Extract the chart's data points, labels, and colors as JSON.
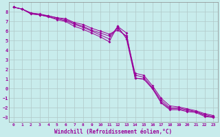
{
  "background_color": "#c8ecec",
  "grid_color": "#b0c8c8",
  "line_color": "#990099",
  "marker": "D",
  "marker_size": 2,
  "xlabel": "Windchill (Refroidissement éolien,°C)",
  "xlim": [
    -0.5,
    23.5
  ],
  "ylim": [
    -3.5,
    9.0
  ],
  "xticks": [
    0,
    1,
    2,
    3,
    4,
    5,
    6,
    7,
    8,
    9,
    10,
    11,
    12,
    13,
    14,
    15,
    16,
    17,
    18,
    19,
    20,
    21,
    22,
    23
  ],
  "yticks": [
    -3,
    -2,
    -1,
    0,
    1,
    2,
    3,
    4,
    5,
    6,
    7,
    8
  ],
  "lines": [
    [
      8.5,
      8.3,
      7.8,
      7.7,
      7.5,
      7.2,
      7.0,
      6.5,
      6.2,
      5.8,
      5.4,
      4.9,
      6.5,
      5.8,
      1.1,
      1.0,
      0.0,
      -1.5,
      -2.2,
      -2.2,
      -2.4,
      -2.5,
      -2.9,
      -3.0
    ],
    [
      8.5,
      8.3,
      7.8,
      7.7,
      7.5,
      7.3,
      7.1,
      6.7,
      6.4,
      6.0,
      5.6,
      5.2,
      6.5,
      5.2,
      1.1,
      1.0,
      0.0,
      -1.4,
      -2.1,
      -2.1,
      -2.3,
      -2.4,
      -2.8,
      -3.0
    ],
    [
      8.5,
      8.3,
      7.9,
      7.7,
      7.6,
      7.4,
      7.2,
      6.8,
      6.5,
      6.1,
      5.8,
      5.5,
      6.3,
      5.4,
      1.4,
      1.2,
      0.1,
      -1.2,
      -2.0,
      -2.0,
      -2.2,
      -2.4,
      -2.7,
      -2.9
    ],
    [
      8.5,
      8.3,
      7.9,
      7.8,
      7.6,
      7.4,
      7.3,
      6.9,
      6.7,
      6.3,
      6.0,
      5.7,
      6.1,
      5.5,
      1.6,
      1.4,
      0.3,
      -1.0,
      -1.8,
      -1.9,
      -2.1,
      -2.3,
      -2.6,
      -2.8
    ]
  ]
}
